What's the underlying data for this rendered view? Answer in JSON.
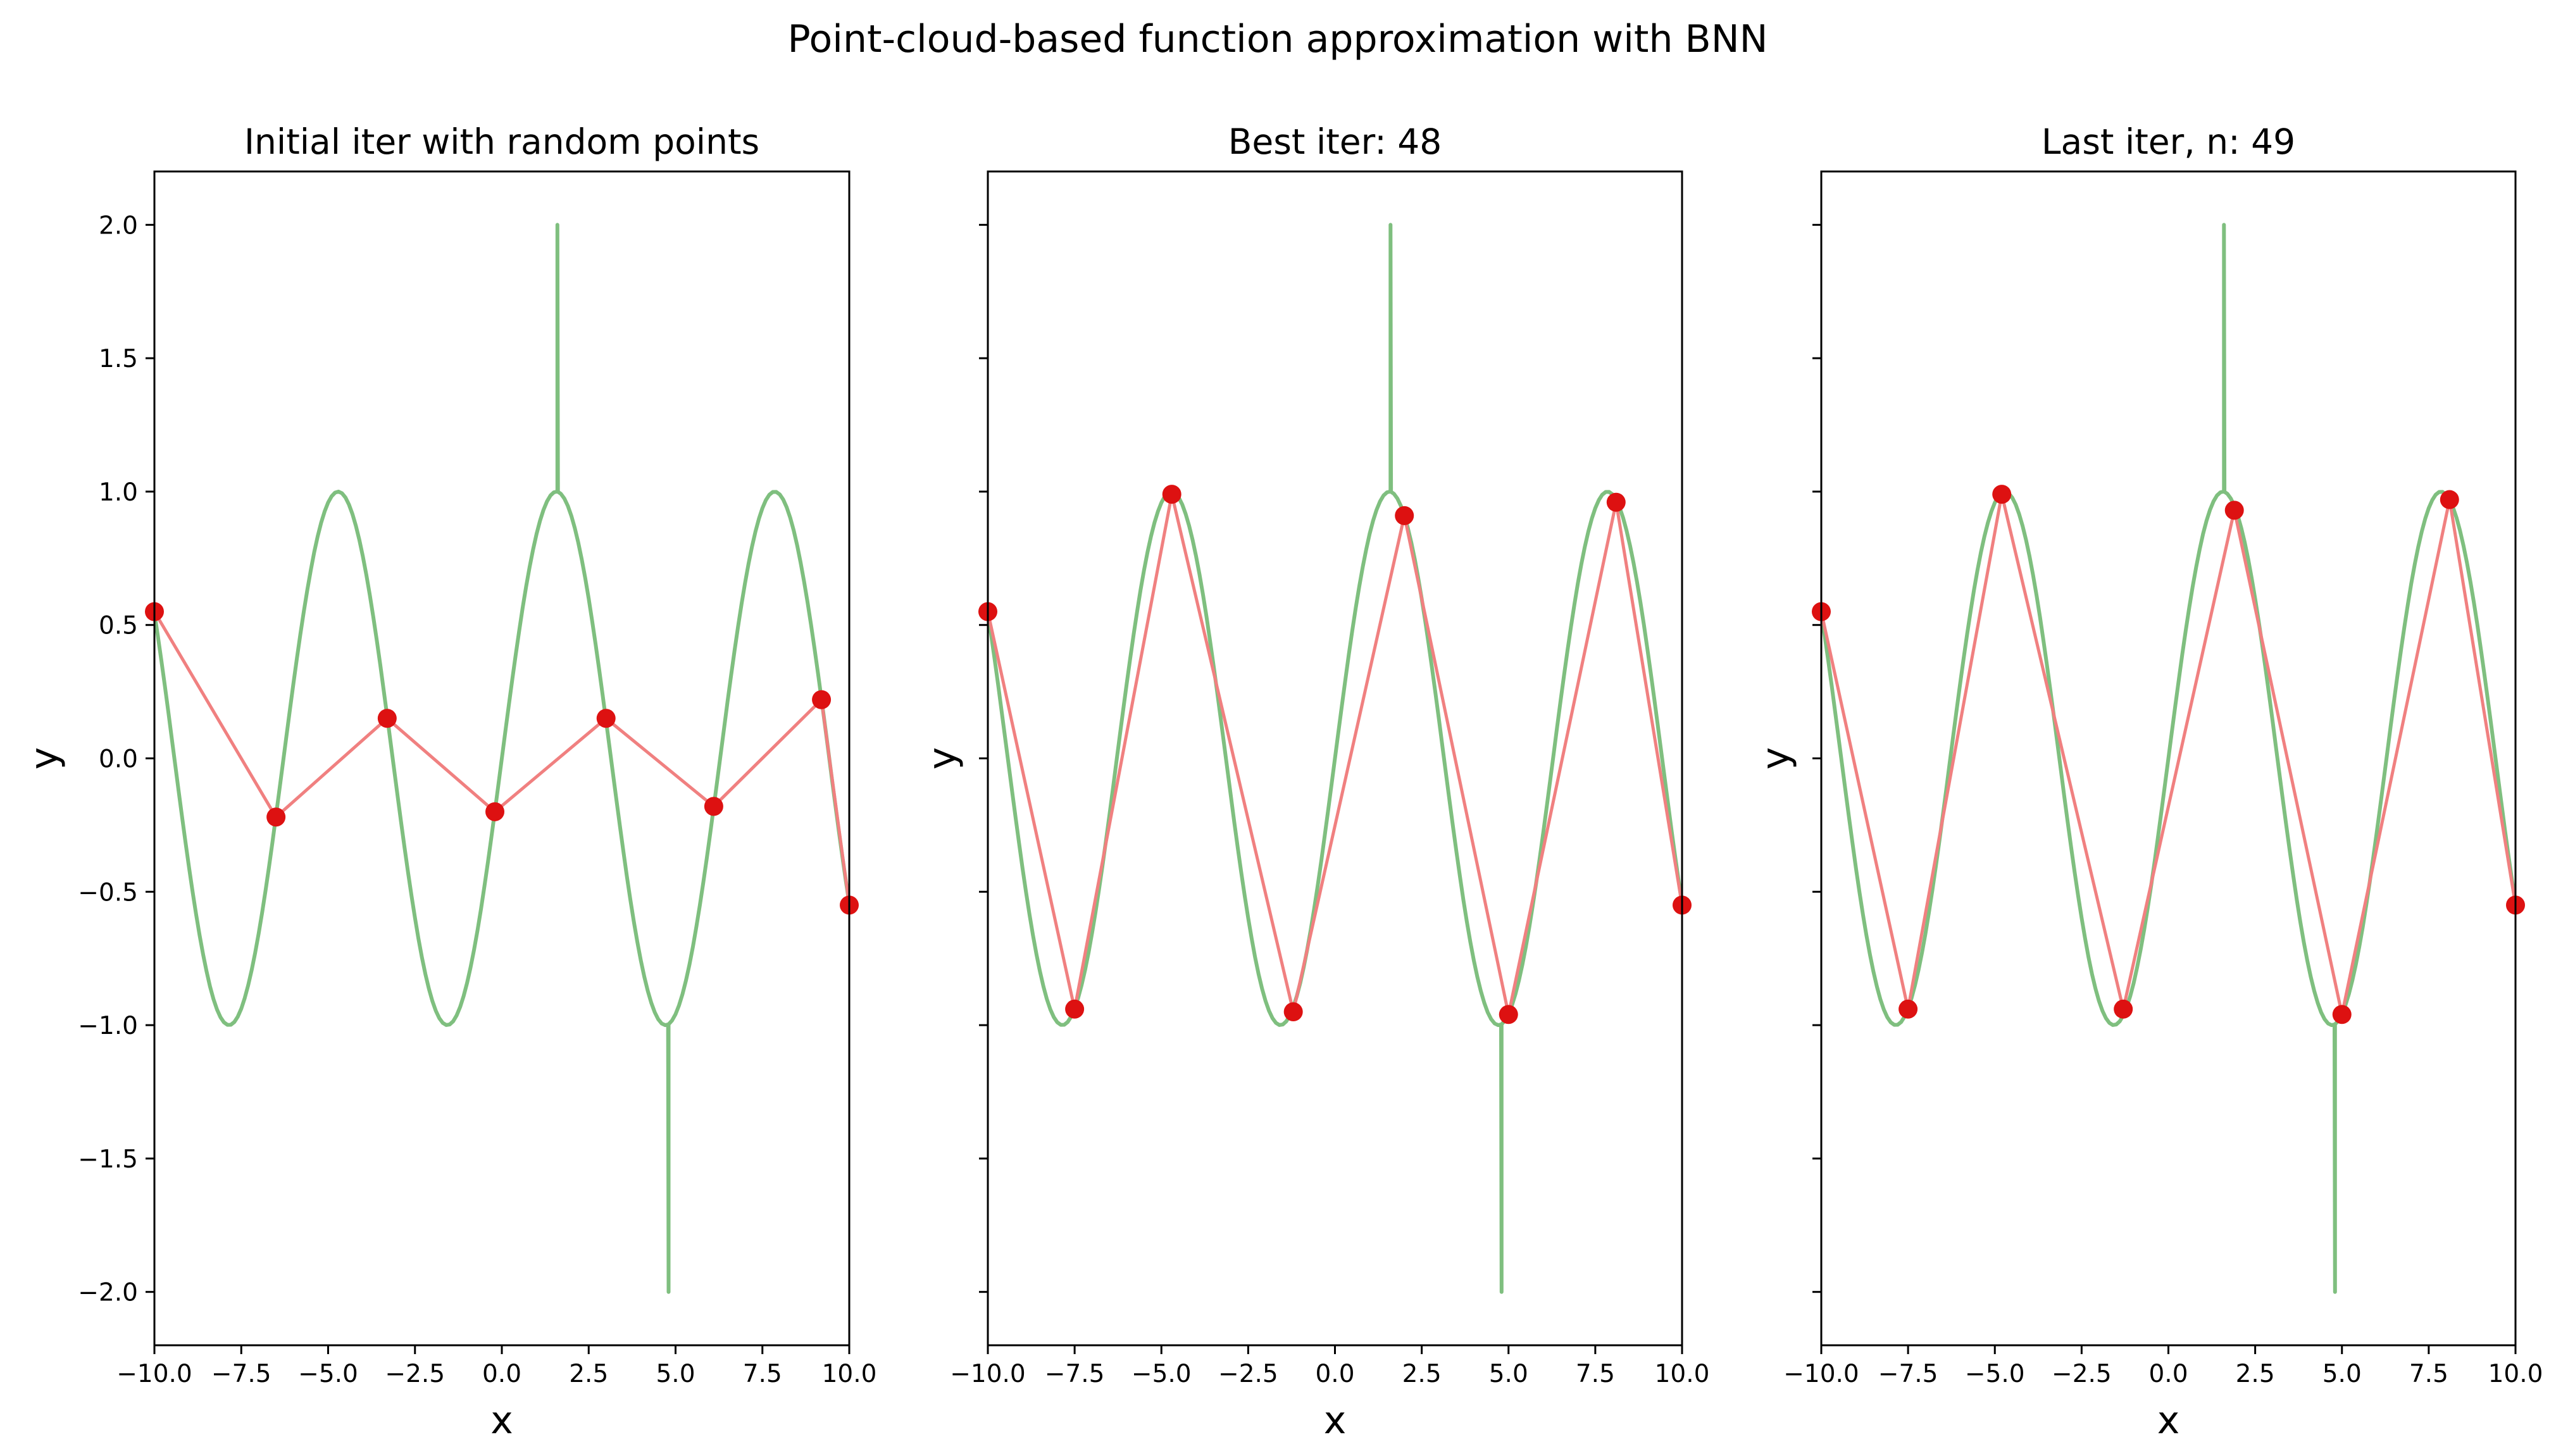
{
  "figure": {
    "suptitle": "Point-cloud-based function approximation with BNN",
    "colors": {
      "true_curve": "#7fbf7f",
      "approx_line": "#f08080",
      "points": "#dd1111"
    }
  },
  "chart_data": [
    {
      "type": "line",
      "title": "Initial iter with random points",
      "xlabel": "x",
      "ylabel": "y",
      "xlim": [
        -10,
        10
      ],
      "ylim": [
        -2.2,
        2.2
      ],
      "x_ticks": [
        "−10.0",
        "−7.5",
        "−5.0",
        "−2.5",
        "0.0",
        "2.5",
        "5.0",
        "7.5",
        "10.0"
      ],
      "y_ticks": [
        "−2.0",
        "−1.5",
        "−1.0",
        "−0.5",
        "0.0",
        "0.5",
        "1.0",
        "1.5",
        "2.0"
      ],
      "show_y_tick_labels": true,
      "grid": false,
      "series": [
        {
          "kind": "true-function",
          "function": "sin(x)",
          "x_range": [
            -10,
            10
          ],
          "spikes": [
            {
              "x": 1.6,
              "y": 2.0
            },
            {
              "x": 4.8,
              "y": -2.0
            }
          ]
        },
        {
          "kind": "approximation",
          "points": [
            {
              "x": -10.0,
              "y": 0.55
            },
            {
              "x": -6.5,
              "y": -0.22
            },
            {
              "x": -3.3,
              "y": 0.15
            },
            {
              "x": -0.2,
              "y": -0.2
            },
            {
              "x": 3.0,
              "y": 0.15
            },
            {
              "x": 6.1,
              "y": -0.18
            },
            {
              "x": 9.2,
              "y": 0.22
            },
            {
              "x": 10.0,
              "y": -0.55
            }
          ]
        }
      ]
    },
    {
      "type": "line",
      "title": "Best iter: 48",
      "xlabel": "x",
      "ylabel": "y",
      "xlim": [
        -10,
        10
      ],
      "ylim": [
        -2.2,
        2.2
      ],
      "x_ticks": [
        "−10.0",
        "−7.5",
        "−5.0",
        "−2.5",
        "0.0",
        "2.5",
        "5.0",
        "7.5",
        "10.0"
      ],
      "y_ticks": [
        "−2.0",
        "−1.5",
        "−1.0",
        "−0.5",
        "0.0",
        "0.5",
        "1.0",
        "1.5",
        "2.0"
      ],
      "show_y_tick_labels": false,
      "grid": false,
      "series": [
        {
          "kind": "true-function",
          "function": "sin(x)",
          "x_range": [
            -10,
            10
          ],
          "spikes": [
            {
              "x": 1.6,
              "y": 2.0
            },
            {
              "x": 4.8,
              "y": -2.0
            }
          ]
        },
        {
          "kind": "approximation",
          "points": [
            {
              "x": -10.0,
              "y": 0.55
            },
            {
              "x": -7.5,
              "y": -0.94
            },
            {
              "x": -4.7,
              "y": 0.99
            },
            {
              "x": -1.2,
              "y": -0.95
            },
            {
              "x": 2.0,
              "y": 0.91
            },
            {
              "x": 5.0,
              "y": -0.96
            },
            {
              "x": 8.1,
              "y": 0.96
            },
            {
              "x": 10.0,
              "y": -0.55
            }
          ]
        }
      ]
    },
    {
      "type": "line",
      "title": "Last iter, n: 49",
      "xlabel": "x",
      "ylabel": "y",
      "xlim": [
        -10,
        10
      ],
      "ylim": [
        -2.2,
        2.2
      ],
      "x_ticks": [
        "−10.0",
        "−7.5",
        "−5.0",
        "−2.5",
        "0.0",
        "2.5",
        "5.0",
        "7.5",
        "10.0"
      ],
      "y_ticks": [
        "−2.0",
        "−1.5",
        "−1.0",
        "−0.5",
        "0.0",
        "0.5",
        "1.0",
        "1.5",
        "2.0"
      ],
      "show_y_tick_labels": false,
      "grid": false,
      "series": [
        {
          "kind": "true-function",
          "function": "sin(x)",
          "x_range": [
            -10,
            10
          ],
          "spikes": [
            {
              "x": 1.6,
              "y": 2.0
            },
            {
              "x": 4.8,
              "y": -2.0
            }
          ]
        },
        {
          "kind": "approximation",
          "points": [
            {
              "x": -10.0,
              "y": 0.55
            },
            {
              "x": -7.5,
              "y": -0.94
            },
            {
              "x": -4.8,
              "y": 0.99
            },
            {
              "x": -1.3,
              "y": -0.94
            },
            {
              "x": 1.9,
              "y": 0.93
            },
            {
              "x": 5.0,
              "y": -0.96
            },
            {
              "x": 8.1,
              "y": 0.97
            },
            {
              "x": 10.0,
              "y": -0.55
            }
          ]
        }
      ]
    }
  ]
}
